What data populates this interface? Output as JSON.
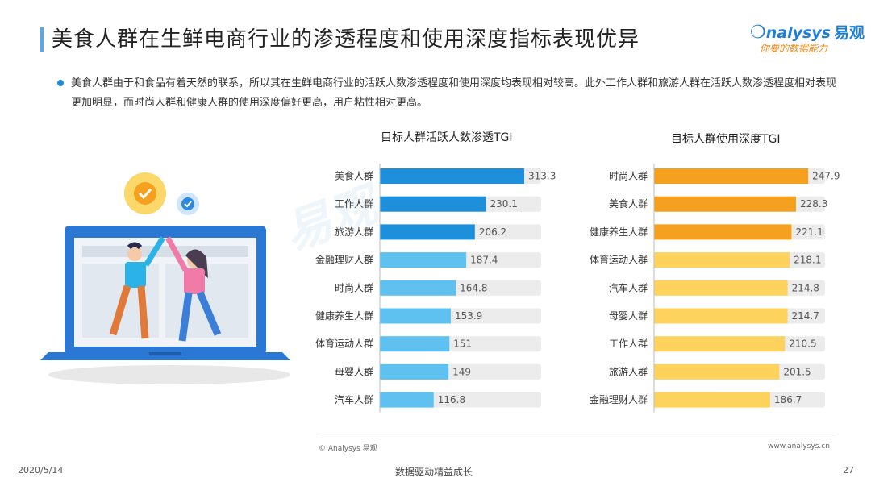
{
  "header": {
    "title": "美食人群在生鲜电商行业的渗透程度和使用深度指标表现优异",
    "logo_text": "nalysys",
    "logo_cn": "易观",
    "logo_slogan": "你要的数据能力"
  },
  "summary": {
    "text": "美食人群由于和食品有着天然的联系，所以其在生鲜电商行业的活跃人数渗透程度和使用深度均表现相对较高。此外工作人群和旅游人群在活跃人数渗透程度相对表现更加明显，而时尚人群和健康人群的使用深度偏好更高，用户粘性相对更高。"
  },
  "chart_data": [
    {
      "type": "bar",
      "orientation": "horizontal",
      "title": "目标人群活跃人数渗透TGI",
      "categories": [
        "美食人群",
        "工作人群",
        "旅游人群",
        "金融理财人群",
        "时尚人群",
        "健康养生人群",
        "体育运动人群",
        "母婴人群",
        "汽车人群"
      ],
      "values": [
        313.3,
        230.1,
        206.2,
        187.4,
        164.8,
        153.9,
        151,
        149,
        116.8
      ],
      "value_labels": [
        "313.3",
        "230.1",
        "206.2",
        "187.4",
        "164.8",
        "153.9",
        "151",
        "149",
        "116.8"
      ],
      "colors": [
        "#1e8fdb",
        "#1e8fdb",
        "#1e8fdb",
        "#5ec1f0",
        "#5ec1f0",
        "#5ec1f0",
        "#5ec1f0",
        "#5ec1f0",
        "#5ec1f0"
      ],
      "track_color": "#ececec",
      "xlim": [
        0,
        350
      ]
    },
    {
      "type": "bar",
      "orientation": "horizontal",
      "title": "目标人群使用深度TGI",
      "categories": [
        "时尚人群",
        "美食人群",
        "健康养生人群",
        "体育运动人群",
        "汽车人群",
        "母婴人群",
        "工作人群",
        "旅游人群",
        "金融理财人群"
      ],
      "values": [
        247.9,
        228.3,
        221.1,
        218.1,
        214.8,
        214.7,
        210.5,
        201.5,
        186.7
      ],
      "value_labels": [
        "247.9",
        "228.3",
        "221.1",
        "218.1",
        "214.8",
        "214.7",
        "210.5",
        "201.5",
        "186.7"
      ],
      "colors": [
        "#f5a01e",
        "#f5a01e",
        "#f5a01e",
        "#fdd35e",
        "#fdd35e",
        "#fdd35e",
        "#fdd35e",
        "#fdd35e",
        "#fdd35e"
      ],
      "track_color": "#ececec",
      "xlim": [
        0,
        275
      ]
    }
  ],
  "footer": {
    "copyright": "© Analysys 易观",
    "website": "www.analysys.cn",
    "date": "2020/5/14",
    "slogan": "数据驱动精益成长",
    "page_number": "27"
  }
}
